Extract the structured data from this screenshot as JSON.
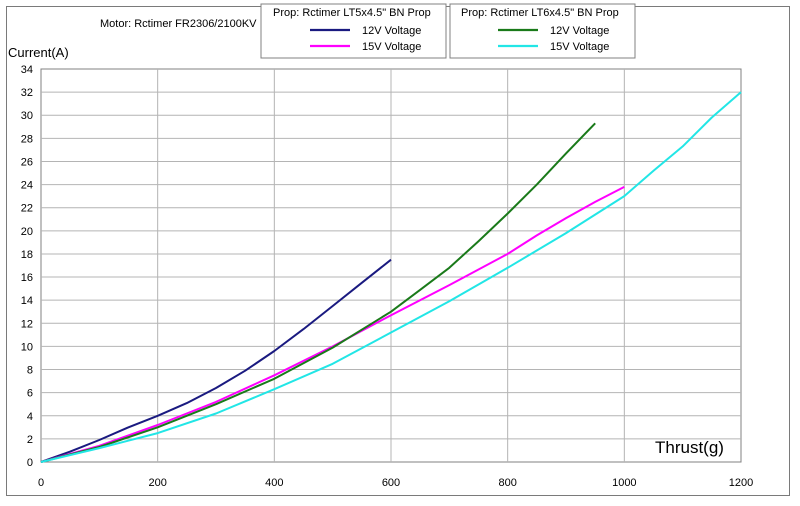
{
  "motor_label": "Motor: Rctimer FR2306/2100KV",
  "legend_groups": [
    {
      "title": "Prop: Rctimer LT5x4.5\" BN Prop",
      "entries": [
        "12V Voltage",
        "15V Voltage"
      ]
    },
    {
      "title": "Prop: Rctimer LT6x4.5\" BN Prop",
      "entries": [
        "12V Voltage",
        "15V Voltage"
      ]
    }
  ],
  "chart_data": {
    "type": "line",
    "xlabel": "Thrust(g)",
    "ylabel": "Current(A)",
    "xlim": [
      0,
      1200
    ],
    "ylim": [
      0,
      34
    ],
    "x_ticks": [
      0,
      200,
      400,
      600,
      800,
      1000,
      1200
    ],
    "y_ticks": [
      0,
      2,
      4,
      6,
      8,
      10,
      12,
      14,
      16,
      18,
      20,
      22,
      24,
      26,
      28,
      30,
      32,
      34
    ],
    "grid": true,
    "legend": "top-center",
    "series": [
      {
        "name": "12V Voltage",
        "group": "Prop: Rctimer LT5x4.5\" BN Prop",
        "color": "#1a1a80",
        "points": [
          [
            0,
            0
          ],
          [
            50,
            0.9
          ],
          [
            100,
            1.9
          ],
          [
            150,
            3.0
          ],
          [
            200,
            4.0
          ],
          [
            250,
            5.1
          ],
          [
            300,
            6.4
          ],
          [
            350,
            7.9
          ],
          [
            400,
            9.6
          ],
          [
            450,
            11.5
          ],
          [
            500,
            13.5
          ],
          [
            550,
            15.5
          ],
          [
            600,
            17.5
          ]
        ]
      },
      {
        "name": "15V Voltage",
        "group": "Prop: Rctimer LT5x4.5\" BN Prop",
        "color": "#ff00ff",
        "points": [
          [
            0,
            0
          ],
          [
            100,
            1.4
          ],
          [
            200,
            3.2
          ],
          [
            300,
            5.2
          ],
          [
            400,
            7.5
          ],
          [
            500,
            10.0
          ],
          [
            600,
            12.7
          ],
          [
            700,
            15.3
          ],
          [
            800,
            18.0
          ],
          [
            850,
            19.6
          ],
          [
            900,
            21.1
          ],
          [
            950,
            22.5
          ],
          [
            1000,
            23.8
          ]
        ]
      },
      {
        "name": "12V Voltage",
        "group": "Prop: Rctimer LT6x4.5\" BN Prop",
        "color": "#1a7a1a",
        "points": [
          [
            0,
            0
          ],
          [
            100,
            1.3
          ],
          [
            200,
            3.0
          ],
          [
            300,
            5.0
          ],
          [
            400,
            7.2
          ],
          [
            500,
            9.9
          ],
          [
            600,
            13.0
          ],
          [
            650,
            14.9
          ],
          [
            700,
            16.8
          ],
          [
            750,
            19.1
          ],
          [
            800,
            21.5
          ],
          [
            850,
            24.0
          ],
          [
            900,
            26.7
          ],
          [
            950,
            29.3
          ]
        ]
      },
      {
        "name": "15V Voltage",
        "group": "Prop: Rctimer LT6x4.5\" BN Prop",
        "color": "#22e6e6",
        "points": [
          [
            0,
            0
          ],
          [
            100,
            1.2
          ],
          [
            200,
            2.5
          ],
          [
            300,
            4.2
          ],
          [
            400,
            6.3
          ],
          [
            500,
            8.5
          ],
          [
            600,
            11.2
          ],
          [
            700,
            13.9
          ],
          [
            800,
            16.8
          ],
          [
            900,
            19.8
          ],
          [
            1000,
            23.0
          ],
          [
            1050,
            25.2
          ],
          [
            1100,
            27.3
          ],
          [
            1150,
            29.8
          ],
          [
            1200,
            32.0
          ]
        ]
      }
    ]
  }
}
